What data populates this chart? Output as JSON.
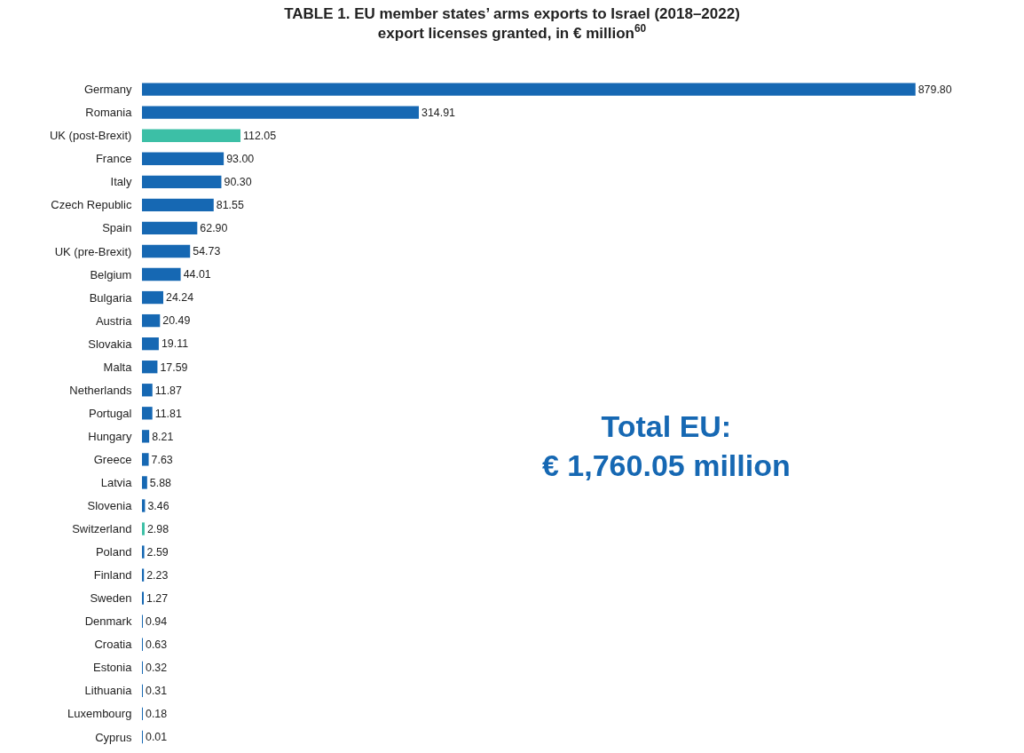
{
  "chart_data": {
    "type": "bar",
    "orientation": "horizontal",
    "title": "TABLE 1. EU member states’ arms exports to Israel (2018–2022)",
    "subtitle": "export licenses granted, in € million$^{60}$",
    "categories": [
      "Germany",
      "Romania",
      "UK (post-Brexit)",
      "France",
      "Italy",
      "Czech Republic",
      "Spain",
      "UK (pre-Brexit)",
      "Belgium",
      "Bulgaria",
      "Austria",
      "Slovakia",
      "Malta",
      "Netherlands",
      "Portugal",
      "Hungary",
      "Greece",
      "Latvia",
      "Slovenia",
      "Switzerland",
      "Poland",
      "Finland",
      "Sweden",
      "Denmark",
      "Croatia",
      "Estonia",
      "Lithuania",
      "Luxembourg",
      "Cyprus"
    ],
    "values": [
      879.8,
      314.91,
      112.05,
      93.0,
      90.3,
      81.55,
      62.9,
      54.73,
      44.01,
      24.24,
      20.49,
      19.11,
      17.59,
      11.87,
      11.81,
      8.21,
      7.63,
      5.88,
      3.46,
      2.98,
      2.59,
      2.23,
      1.27,
      0.94,
      0.63,
      0.32,
      0.31,
      0.18,
      0.01
    ],
    "value_labels": [
      "879.80",
      "314.91",
      "112.05",
      "93.00",
      "90.30",
      "81.55",
      "62.90",
      "54.73",
      "44.01",
      "24.24",
      "20.49",
      "19.11",
      "17.59",
      "11.87",
      "11.81",
      "8.21",
      "7.63",
      "5.88",
      "3.46",
      "2.98",
      "2.59",
      "2.23",
      "1.27",
      "0.94",
      "0.63",
      "0.32",
      "0.31",
      "0.18",
      "0.01"
    ],
    "colors": [
      "#1668b3",
      "#1668b3",
      "#3cbfa6",
      "#1668b3",
      "#1668b3",
      "#1668b3",
      "#1668b3",
      "#1668b3",
      "#1668b3",
      "#1668b3",
      "#1668b3",
      "#1668b3",
      "#1668b3",
      "#1668b3",
      "#1668b3",
      "#1668b3",
      "#1668b3",
      "#1668b3",
      "#1668b3",
      "#3cbfa6",
      "#1668b3",
      "#1668b3",
      "#1668b3",
      "#1668b3",
      "#1668b3",
      "#1668b3",
      "#1668b3",
      "#1668b3",
      "#1668b3"
    ],
    "annotations": [
      "Total EU:\n€ 1,760.05 million"
    ]
  }
}
